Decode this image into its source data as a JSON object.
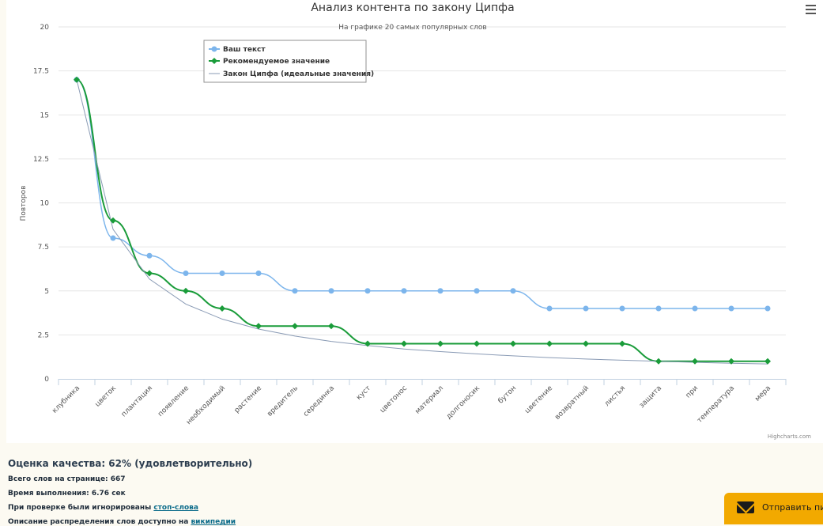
{
  "chart_data": {
    "type": "line",
    "title": "Анализ контента по закону Ципфа",
    "subtitle": "На графике 20 самых популярных слов",
    "xlabel": "",
    "ylabel": "Повторов",
    "ylim": [
      0,
      20
    ],
    "yticks": [
      "0",
      "2.5",
      "5",
      "7.5",
      "10",
      "12.5",
      "15",
      "17.5",
      "20"
    ],
    "grid": true,
    "legend_position": "top-left",
    "categories": [
      "клубника",
      "цветок",
      "плантация",
      "появление",
      "необходимый",
      "растение",
      "вредитель",
      "серединка",
      "куст",
      "цветонос",
      "материал",
      "долгоносик",
      "бутон",
      "цветение",
      "возвратный",
      "листья",
      "защита",
      "при",
      "температура",
      "мера"
    ],
    "series": [
      {
        "name": "Ваш текст",
        "color": "#7cb5ec",
        "marker": "circle",
        "values": [
          17,
          8,
          7,
          6,
          6,
          6,
          5,
          5,
          5,
          5,
          5,
          5,
          5,
          4,
          4,
          4,
          4,
          4,
          4,
          4
        ]
      },
      {
        "name": "Рекомендуемое значение",
        "color": "#1a9c3a",
        "marker": "diamond",
        "values": [
          17,
          9,
          6,
          5,
          4,
          3,
          3,
          3,
          2,
          2,
          2,
          2,
          2,
          2,
          2,
          2,
          1,
          1,
          1,
          1
        ]
      },
      {
        "name": "Закон Ципфа (идеальные значения)",
        "color": "#8a9bb5",
        "marker": "none",
        "values": [
          17,
          8.5,
          5.67,
          4.25,
          3.4,
          2.83,
          2.43,
          2.13,
          1.89,
          1.7,
          1.55,
          1.42,
          1.31,
          1.21,
          1.13,
          1.06,
          1.0,
          0.94,
          0.89,
          0.85
        ]
      }
    ],
    "credits": "Highcharts.com"
  },
  "stats": {
    "quality": "Оценка качества: 62% (удовлетворительно)",
    "total_words": "Всего слов на странице: 667",
    "exec_time": "Время выполнения: 6.76 сек",
    "ignored_prefix": "При проверке были игнорированы ",
    "ignored_link": "стоп-слова",
    "desc_prefix": "Описание распределения слов доступно на ",
    "desc_link": "википедии"
  },
  "widget": {
    "label": "Отправить пи",
    "icon": "envelope-icon"
  },
  "menu": {
    "icon": "hamburger-menu-icon"
  }
}
